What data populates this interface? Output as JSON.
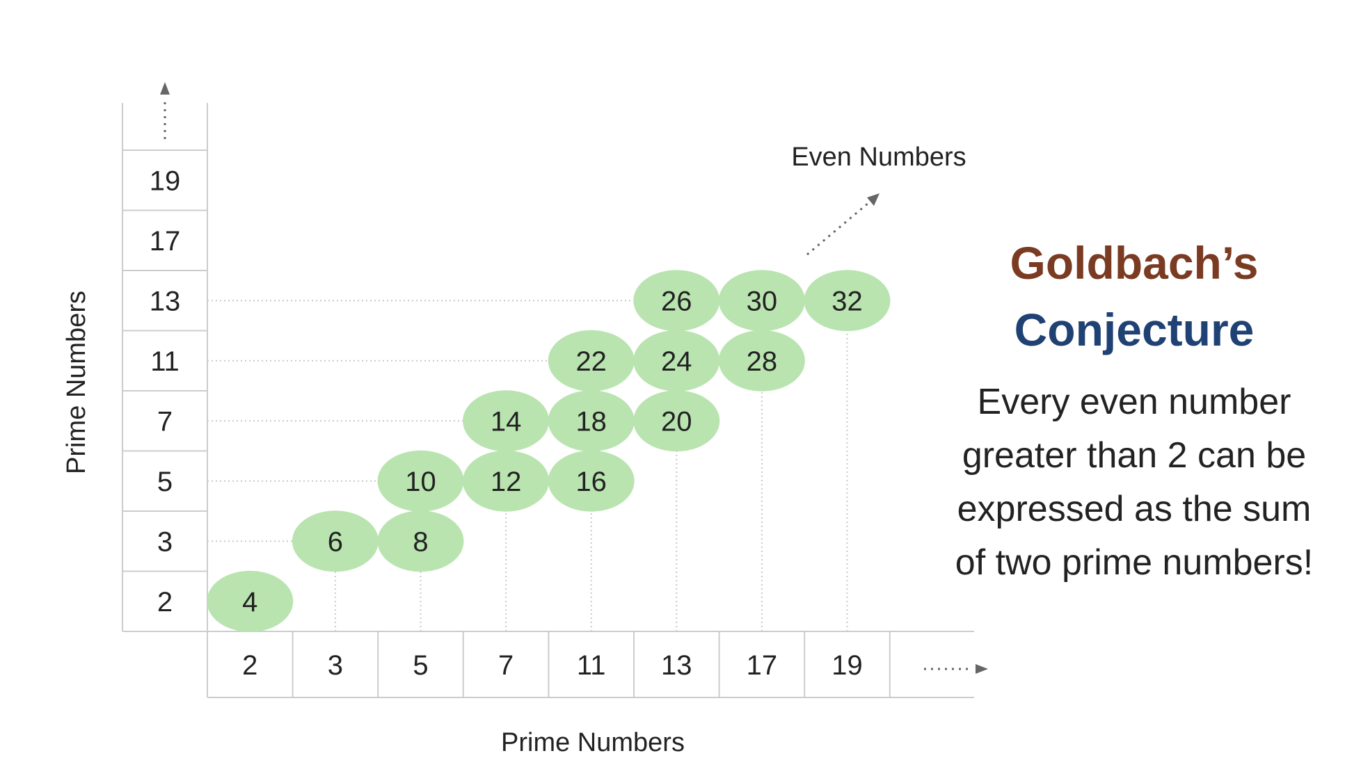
{
  "labels": {
    "x_axis": "Prime Numbers",
    "y_axis": "Prime Numbers",
    "diagonal": "Even Numbers"
  },
  "x_primes": [
    "2",
    "3",
    "5",
    "7",
    "11",
    "13",
    "17",
    "19"
  ],
  "y_primes": [
    "2",
    "3",
    "5",
    "7",
    "11",
    "13",
    "17",
    "19"
  ],
  "sums": [
    {
      "col": 0,
      "row": 0,
      "value": "4"
    },
    {
      "col": 1,
      "row": 1,
      "value": "6"
    },
    {
      "col": 2,
      "row": 1,
      "value": "8"
    },
    {
      "col": 2,
      "row": 2,
      "value": "10"
    },
    {
      "col": 3,
      "row": 2,
      "value": "12"
    },
    {
      "col": 4,
      "row": 2,
      "value": "16"
    },
    {
      "col": 3,
      "row": 3,
      "value": "14"
    },
    {
      "col": 4,
      "row": 3,
      "value": "18"
    },
    {
      "col": 5,
      "row": 3,
      "value": "20"
    },
    {
      "col": 4,
      "row": 4,
      "value": "22"
    },
    {
      "col": 5,
      "row": 4,
      "value": "24"
    },
    {
      "col": 6,
      "row": 4,
      "value": "28"
    },
    {
      "col": 5,
      "row": 5,
      "value": "26"
    },
    {
      "col": 6,
      "row": 5,
      "value": "30"
    },
    {
      "col": 7,
      "row": 5,
      "value": "32"
    }
  ],
  "title": {
    "line1": "Goldbach’s",
    "line2": "Conjecture"
  },
  "statement": [
    "Every even number",
    "greater than 2 can be",
    "expressed as the sum",
    "of two prime numbers!"
  ],
  "colors": {
    "bubble": "#b9e4b0",
    "title_brown": "#7a3b22",
    "title_blue": "#1f4173",
    "gridline": "#c8c8c8",
    "arrow": "#666666"
  }
}
